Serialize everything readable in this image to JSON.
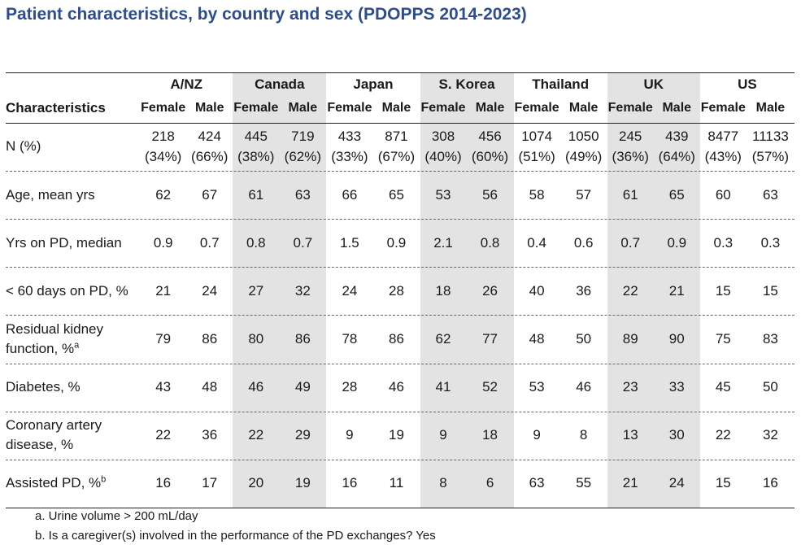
{
  "title": "Patient characteristics, by country and sex (PDOPPS 2014-2023)",
  "header": {
    "characteristics_label": "Characteristics",
    "countries": [
      "A/NZ",
      "Canada",
      "Japan",
      "S. Korea",
      "Thailand",
      "UK",
      "US"
    ],
    "female_label": "Female",
    "male_label": "Male"
  },
  "n_row": {
    "label": "N (%)",
    "counts": [
      "218",
      "424",
      "445",
      "719",
      "433",
      "871",
      "308",
      "456",
      "1074",
      "1050",
      "245",
      "439",
      "8477",
      "11133"
    ],
    "percents": [
      "(34%)",
      "(66%)",
      "(38%)",
      "(62%)",
      "(33%)",
      "(67%)",
      "(40%)",
      "(60%)",
      "(51%)",
      "(49%)",
      "(36%)",
      "(64%)",
      "(43%)",
      "(57%)"
    ]
  },
  "rows": [
    {
      "label": "Age, mean yrs",
      "sup": "",
      "values": [
        "62",
        "67",
        "61",
        "63",
        "66",
        "65",
        "53",
        "56",
        "58",
        "57",
        "61",
        "65",
        "60",
        "63"
      ]
    },
    {
      "label": "Yrs on PD, median",
      "sup": "",
      "values": [
        "0.9",
        "0.7",
        "0.8",
        "0.7",
        "1.5",
        "0.9",
        "2.1",
        "0.8",
        "0.4",
        "0.6",
        "0.7",
        "0.9",
        "0.3",
        "0.3"
      ]
    },
    {
      "label": "< 60 days on PD, %",
      "sup": "",
      "values": [
        "21",
        "24",
        "27",
        "32",
        "24",
        "28",
        "18",
        "26",
        "40",
        "36",
        "22",
        "21",
        "15",
        "15"
      ]
    },
    {
      "label": "Residual kidney",
      "label2": "function, %",
      "sup": "a",
      "values": [
        "79",
        "86",
        "80",
        "86",
        "78",
        "86",
        "62",
        "77",
        "48",
        "50",
        "89",
        "90",
        "75",
        "83"
      ]
    },
    {
      "label": "Diabetes, %",
      "sup": "",
      "values": [
        "43",
        "48",
        "46",
        "49",
        "28",
        "46",
        "41",
        "52",
        "53",
        "46",
        "23",
        "33",
        "45",
        "50"
      ]
    },
    {
      "label": "Coronary artery",
      "label2": "disease, %",
      "sup": "",
      "values": [
        "22",
        "36",
        "22",
        "29",
        "9",
        "19",
        "9",
        "18",
        "9",
        "8",
        "13",
        "30",
        "22",
        "32"
      ]
    },
    {
      "label": "Assisted PD, %",
      "sup": "b",
      "values": [
        "16",
        "17",
        "20",
        "19",
        "16",
        "11",
        "8",
        "6",
        "63",
        "55",
        "21",
        "24",
        "15",
        "16"
      ]
    }
  ],
  "footnotes": [
    "a. Urine volume > 200 mL/day",
    "b. Is a caregiver(s) involved in the performance of the PD exchanges? Yes"
  ],
  "colors": {
    "title": "#2e4d8c",
    "shade": "#e3e3e3"
  }
}
